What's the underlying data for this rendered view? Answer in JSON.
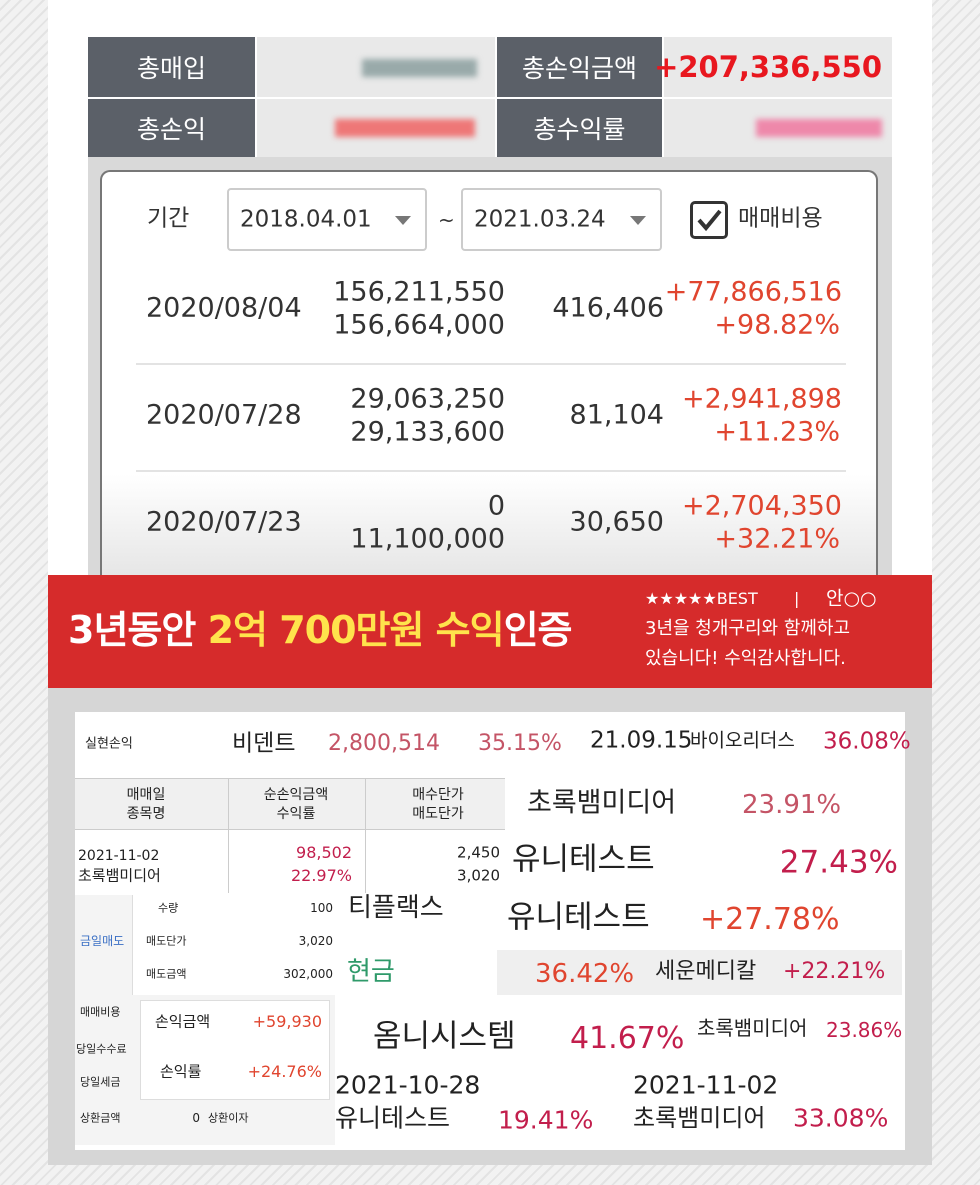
{
  "summary": {
    "total_buy_label": "총매입",
    "total_pnl_amount_label": "총손익금액",
    "total_pnl_amount": "+207,336,550",
    "total_pnl_label": "총손익",
    "total_return_label": "총수익률"
  },
  "filter": {
    "label": "기간",
    "start": "2018.04.01",
    "separator": "~",
    "end": "2021.03.24",
    "fee_label": "매매비용"
  },
  "trades": [
    {
      "date": "2020/08/04",
      "buy": "156,211,550",
      "sell": "156,664,000",
      "fee": "416,406",
      "pnl": "+77,866,516",
      "return": "+98.82%"
    },
    {
      "date": "2020/07/28",
      "buy": "29,063,250",
      "sell": "29,133,600",
      "fee": "81,104",
      "pnl": "+2,941,898",
      "return": "+11.23%"
    },
    {
      "date": "2020/07/23",
      "buy": "0",
      "sell": "11,100,000",
      "fee": "30,650",
      "pnl": "+2,704,350",
      "return": "+32.21%"
    }
  ],
  "banner": {
    "headline_pre": "3년동안 ",
    "headline_highlight": "2억 700만원 수익",
    "headline_post": "인증",
    "review_badge": "★★★★★BEST",
    "review_separator": "|",
    "reviewer": "안○○",
    "review_lines": [
      "3년을 청개구리와 함께하고",
      "있습니다!  수익감사합니다."
    ]
  },
  "collage": [
    "실현손익",
    "비덴트",
    "2,800,514",
    "35.15%",
    "21.09.15",
    "바이오리더스",
    "36.08%",
    "매매일",
    "종목명",
    "순손익금액",
    "수익률",
    "매수단가",
    "매도단가",
    "2021-11-02",
    "초록뱀미디어",
    "98,502",
    "22.97%",
    "2,450",
    "3,020",
    "초록뱀미디어",
    "23.91%",
    "유니테스트",
    "27.43%",
    "티플랙스",
    "유니테스트",
    "+27.78%",
    "금일매도",
    "수량",
    "100",
    "매도단가",
    "3,020",
    "매도금액",
    "302,000",
    "현금",
    "36.42%",
    "세운메디칼",
    "+22.21%",
    "매매비용",
    "당일수수료",
    "당일세금",
    "상환금액",
    "0",
    "상환이자",
    "손익금액",
    "+59,930",
    "손익률",
    "+24.76%",
    "옴니시스템",
    "41.67%",
    "초록뱀미디어",
    "23.86%",
    "2021-10-28",
    "유니테스트",
    "19.41%",
    "2021-11-02",
    "초록뱀미디어",
    "33.08%"
  ]
}
